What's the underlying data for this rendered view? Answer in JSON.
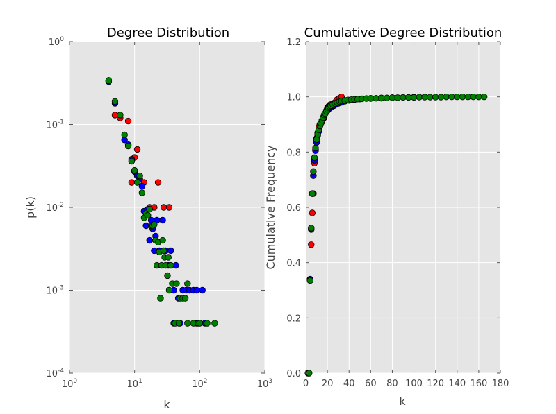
{
  "chart_data": [
    {
      "type": "scatter",
      "title": "Degree Distribution",
      "xlabel": "k",
      "ylabel": "p(k)",
      "xscale": "log",
      "yscale": "log",
      "xlim": [
        1,
        1000
      ],
      "ylim": [
        0.0001,
        1
      ],
      "grid": true,
      "xticks": [
        {
          "base": "10",
          "exp": "0",
          "value": 1
        },
        {
          "base": "10",
          "exp": "1",
          "value": 10
        },
        {
          "base": "10",
          "exp": "2",
          "value": 100
        },
        {
          "base": "10",
          "exp": "3",
          "value": 1000
        }
      ],
      "yticks": [
        {
          "base": "10",
          "exp": "-4",
          "value": 0.0001
        },
        {
          "base": "10",
          "exp": "-3",
          "value": 0.001
        },
        {
          "base": "10",
          "exp": "-2",
          "value": 0.01
        },
        {
          "base": "10",
          "exp": "-1",
          "value": 0.1
        },
        {
          "base": "10",
          "exp": "0",
          "value": 1
        }
      ],
      "series": [
        {
          "color": "#ff0000",
          "points": [
            [
              4,
              0.34
            ],
            [
              5,
              0.13
            ],
            [
              6,
              0.12
            ],
            [
              8,
              0.11
            ],
            [
              9,
              0.02
            ],
            [
              10,
              0.04
            ],
            [
              11,
              0.05
            ],
            [
              14,
              0.02
            ],
            [
              17,
              0.01
            ],
            [
              20,
              0.01
            ],
            [
              23,
              0.02
            ],
            [
              28,
              0.01
            ],
            [
              34,
              0.01
            ]
          ]
        },
        {
          "color": "#0000ff",
          "points": [
            [
              4,
              0.33
            ],
            [
              5,
              0.18
            ],
            [
              7,
              0.065
            ],
            [
              8,
              0.057
            ],
            [
              9,
              0.038
            ],
            [
              10,
              0.027
            ],
            [
              11,
              0.024
            ],
            [
              12,
              0.022
            ],
            [
              13,
              0.018
            ],
            [
              14,
              0.009
            ],
            [
              15,
              0.006
            ],
            [
              16,
              0.0095
            ],
            [
              17,
              0.004
            ],
            [
              18,
              0.007
            ],
            [
              19,
              0.0055
            ],
            [
              20,
              0.003
            ],
            [
              21,
              0.0045
            ],
            [
              22,
              0.007
            ],
            [
              24,
              0.003
            ],
            [
              27,
              0.007
            ],
            [
              30,
              0.003
            ],
            [
              33,
              0.002
            ],
            [
              36,
              0.003
            ],
            [
              40,
              0.001
            ],
            [
              43,
              0.002
            ],
            [
              47,
              0.0008
            ],
            [
              55,
              0.001
            ],
            [
              62,
              0.001
            ],
            [
              70,
              0.001
            ],
            [
              80,
              0.001
            ],
            [
              90,
              0.001
            ],
            [
              110,
              0.001
            ],
            [
              40,
              0.0004
            ],
            [
              50,
              0.0004
            ],
            [
              90,
              0.0004
            ],
            [
              120,
              0.0004
            ]
          ]
        },
        {
          "color": "#008000",
          "points": [
            [
              4,
              0.34
            ],
            [
              5,
              0.19
            ],
            [
              6,
              0.13
            ],
            [
              7,
              0.075
            ],
            [
              8,
              0.055
            ],
            [
              9,
              0.036
            ],
            [
              10,
              0.028
            ],
            [
              11,
              0.02
            ],
            [
              12,
              0.024
            ],
            [
              13,
              0.015
            ],
            [
              14,
              0.0075
            ],
            [
              15,
              0.0085
            ],
            [
              16,
              0.008
            ],
            [
              17,
              0.0095
            ],
            [
              18,
              0.006
            ],
            [
              19,
              0.006
            ],
            [
              20,
              0.0062
            ],
            [
              21,
              0.004
            ],
            [
              22,
              0.002
            ],
            [
              23,
              0.0038
            ],
            [
              24,
              0.0029
            ],
            [
              25,
              0.0008
            ],
            [
              26,
              0.002
            ],
            [
              27,
              0.004
            ],
            [
              28,
              0.003
            ],
            [
              29,
              0.0025
            ],
            [
              30,
              0.002
            ],
            [
              32,
              0.0015
            ],
            [
              33,
              0.0025
            ],
            [
              34,
              0.001
            ],
            [
              36,
              0.002
            ],
            [
              38,
              0.0012
            ],
            [
              42,
              0.0004
            ],
            [
              44,
              0.0012
            ],
            [
              48,
              0.0004
            ],
            [
              50,
              0.0008
            ],
            [
              55,
              0.0008
            ],
            [
              60,
              0.0008
            ],
            [
              65,
              0.0012
            ],
            [
              65,
              0.0004
            ],
            [
              80,
              0.0004
            ],
            [
              95,
              0.0004
            ],
            [
              100,
              0.0004
            ],
            [
              130,
              0.0004
            ],
            [
              170,
              0.0004
            ]
          ]
        }
      ]
    },
    {
      "type": "scatter",
      "title": "Cumulative Degree Distribution",
      "xlabel": "k",
      "ylabel": "Cumulative Frequency",
      "xlim": [
        0,
        180
      ],
      "ylim": [
        0,
        1.2
      ],
      "grid": true,
      "xticks": [
        "0",
        "20",
        "40",
        "60",
        "80",
        "100",
        "120",
        "140",
        "160",
        "180"
      ],
      "yticks": [
        "0.0",
        "0.2",
        "0.4",
        "0.6",
        "0.8",
        "1.0",
        "1.2"
      ],
      "series": [
        {
          "color": "#ff0000",
          "points": [
            [
              2,
              0
            ],
            [
              4,
              0.34
            ],
            [
              5,
              0.465
            ],
            [
              6,
              0.58
            ],
            [
              7,
              0.65
            ],
            [
              8,
              0.76
            ],
            [
              9,
              0.81
            ],
            [
              10,
              0.85
            ],
            [
              11,
              0.87
            ],
            [
              12,
              0.89
            ],
            [
              13,
              0.9
            ],
            [
              14,
              0.905
            ],
            [
              15,
              0.91
            ],
            [
              16,
              0.92
            ],
            [
              17,
              0.925
            ],
            [
              18,
              0.94
            ],
            [
              19,
              0.95
            ],
            [
              20,
              0.96
            ],
            [
              21,
              0.965
            ],
            [
              22,
              0.97
            ],
            [
              23,
              0.972
            ],
            [
              25,
              0.975
            ],
            [
              27,
              0.98
            ],
            [
              29,
              0.99
            ],
            [
              31,
              0.995
            ],
            [
              33,
              1.0
            ]
          ]
        },
        {
          "color": "#0000ff",
          "points": [
            [
              3,
              0
            ],
            [
              4,
              0.34
            ],
            [
              5,
              0.52
            ],
            [
              6,
              0.65
            ],
            [
              7,
              0.715
            ],
            [
              8,
              0.77
            ],
            [
              9,
              0.805
            ],
            [
              10,
              0.835
            ],
            [
              11,
              0.86
            ],
            [
              12,
              0.875
            ],
            [
              13,
              0.895
            ],
            [
              14,
              0.905
            ],
            [
              15,
              0.915
            ],
            [
              16,
              0.925
            ],
            [
              17,
              0.93
            ],
            [
              18,
              0.94
            ],
            [
              19,
              0.945
            ],
            [
              20,
              0.95
            ],
            [
              22,
              0.958
            ],
            [
              24,
              0.963
            ],
            [
              26,
              0.968
            ],
            [
              28,
              0.972
            ],
            [
              30,
              0.976
            ],
            [
              33,
              0.98
            ],
            [
              36,
              0.984
            ],
            [
              40,
              0.987
            ],
            [
              45,
              0.99
            ],
            [
              50,
              0.992
            ],
            [
              60,
              0.994
            ],
            [
              70,
              0.995
            ],
            [
              80,
              0.997
            ],
            [
              90,
              0.998
            ],
            [
              100,
              0.999
            ],
            [
              110,
              1.0
            ]
          ]
        },
        {
          "color": "#008000",
          "points": [
            [
              3,
              0
            ],
            [
              4,
              0.335
            ],
            [
              5,
              0.525
            ],
            [
              6,
              0.65
            ],
            [
              7,
              0.73
            ],
            [
              8,
              0.78
            ],
            [
              9,
              0.815
            ],
            [
              10,
              0.845
            ],
            [
              11,
              0.865
            ],
            [
              12,
              0.88
            ],
            [
              13,
              0.895
            ],
            [
              14,
              0.905
            ],
            [
              15,
              0.915
            ],
            [
              16,
              0.925
            ],
            [
              17,
              0.935
            ],
            [
              18,
              0.94
            ],
            [
              19,
              0.948
            ],
            [
              20,
              0.955
            ],
            [
              21,
              0.96
            ],
            [
              22,
              0.965
            ],
            [
              23,
              0.968
            ],
            [
              25,
              0.972
            ],
            [
              27,
              0.976
            ],
            [
              29,
              0.98
            ],
            [
              31,
              0.983
            ],
            [
              33,
              0.985
            ],
            [
              36,
              0.987
            ],
            [
              39,
              0.989
            ],
            [
              42,
              0.99
            ],
            [
              45,
              0.991
            ],
            [
              48,
              0.992
            ],
            [
              52,
              0.993
            ],
            [
              56,
              0.994
            ],
            [
              60,
              0.995
            ],
            [
              65,
              0.995
            ],
            [
              70,
              0.996
            ],
            [
              75,
              0.996
            ],
            [
              80,
              0.997
            ],
            [
              85,
              0.997
            ],
            [
              90,
              0.998
            ],
            [
              95,
              0.998
            ],
            [
              100,
              0.998
            ],
            [
              105,
              0.999
            ],
            [
              110,
              0.999
            ],
            [
              115,
              0.999
            ],
            [
              120,
              0.999
            ],
            [
              125,
              0.999
            ],
            [
              130,
              1.0
            ],
            [
              135,
              1.0
            ],
            [
              140,
              1.0
            ],
            [
              145,
              1.0
            ],
            [
              150,
              1.0
            ],
            [
              155,
              1.0
            ],
            [
              160,
              1.0
            ],
            [
              165,
              1.0
            ]
          ]
        }
      ]
    }
  ]
}
